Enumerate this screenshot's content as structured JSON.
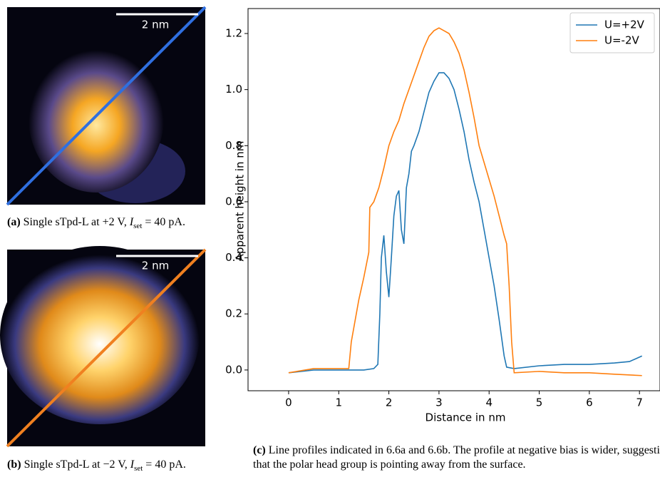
{
  "panels": [
    {
      "scalebar": "2 nm",
      "caption": {
        "label": "(a)",
        "text": "Single sTpd-L at +2 V, ",
        "symbol": "I",
        "subscript": "set",
        "rest": " = 40 pA."
      }
    },
    {
      "scalebar": "2 nm",
      "caption": {
        "label": "(b)",
        "text": "Single sTpd-L at −2 V, ",
        "symbol": "I",
        "subscript": "set",
        "rest": " = 40 pA."
      }
    },
    {
      "caption": {
        "label": "(c)",
        "text": "Line profiles indicated in 6.6a and 6.6b. The profile at negative bias is wider, suggesting that the polar head group is pointing away from the surface."
      }
    }
  ],
  "chart_data": {
    "type": "line",
    "x_label": "Distance in nm",
    "y_label": "Apparent height in nm",
    "xlim": [
      -0.81,
      7.41
    ],
    "ylim": [
      -0.074,
      1.289
    ],
    "xticks": [
      0,
      1,
      2,
      3,
      4,
      5,
      6,
      7
    ],
    "yticks": [
      {
        "value": 0,
        "label": "0.0"
      },
      0.2,
      0.4,
      0.6,
      0.8,
      {
        "value": 1,
        "label": "1.0"
      },
      1.2
    ],
    "legend": "upper right",
    "series": [
      {
        "name": "U=+2V",
        "color": "#1f77b4",
        "x": [
          0,
          0.5,
          1.0,
          1.5,
          1.7,
          1.78,
          1.82,
          1.85,
          1.9,
          1.95,
          2.0,
          2.05,
          2.1,
          2.15,
          2.2,
          2.25,
          2.3,
          2.35,
          2.4,
          2.45,
          2.5,
          2.6,
          2.7,
          2.8,
          2.9,
          3.0,
          3.1,
          3.2,
          3.3,
          3.4,
          3.5,
          3.6,
          3.7,
          3.8,
          3.9,
          4.0,
          4.1,
          4.2,
          4.3,
          4.35,
          4.5,
          5.0,
          5.5,
          6.0,
          6.5,
          6.8,
          7.05
        ],
        "values": [
          -0.01,
          0.0,
          0.0,
          0.0,
          0.005,
          0.02,
          0.2,
          0.4,
          0.48,
          0.35,
          0.26,
          0.4,
          0.55,
          0.62,
          0.64,
          0.5,
          0.45,
          0.65,
          0.7,
          0.78,
          0.8,
          0.85,
          0.92,
          0.99,
          1.03,
          1.06,
          1.06,
          1.04,
          1.0,
          0.93,
          0.85,
          0.75,
          0.67,
          0.6,
          0.5,
          0.4,
          0.3,
          0.18,
          0.05,
          0.01,
          0.005,
          0.015,
          0.02,
          0.02,
          0.025,
          0.03,
          0.05
        ]
      },
      {
        "name": "U=-2V",
        "color": "#ff7f0e",
        "x": [
          0,
          0.5,
          1.0,
          1.2,
          1.25,
          1.3,
          1.4,
          1.5,
          1.6,
          1.62,
          1.7,
          1.8,
          1.9,
          2.0,
          2.1,
          2.2,
          2.3,
          2.4,
          2.5,
          2.6,
          2.7,
          2.8,
          2.9,
          3.0,
          3.1,
          3.2,
          3.3,
          3.4,
          3.5,
          3.6,
          3.7,
          3.8,
          3.9,
          4.0,
          4.1,
          4.2,
          4.3,
          4.35,
          4.4,
          4.45,
          4.5,
          5.0,
          5.5,
          6.0,
          6.5,
          7.05
        ],
        "values": [
          -0.01,
          0.005,
          0.005,
          0.005,
          0.1,
          0.15,
          0.25,
          0.33,
          0.42,
          0.58,
          0.6,
          0.65,
          0.72,
          0.8,
          0.85,
          0.89,
          0.95,
          1.0,
          1.05,
          1.1,
          1.15,
          1.19,
          1.21,
          1.22,
          1.21,
          1.2,
          1.17,
          1.13,
          1.07,
          0.99,
          0.9,
          0.8,
          0.74,
          0.68,
          0.62,
          0.55,
          0.48,
          0.45,
          0.3,
          0.1,
          -0.01,
          -0.005,
          -0.01,
          -0.01,
          -0.015,
          -0.02
        ]
      }
    ]
  }
}
